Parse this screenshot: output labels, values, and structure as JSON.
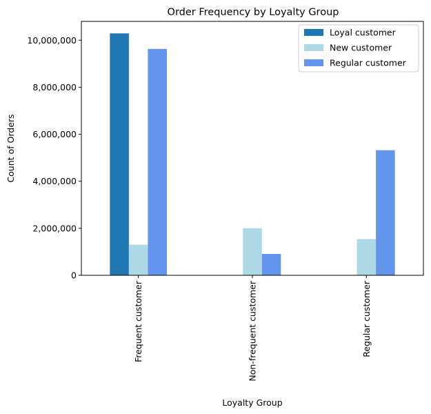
{
  "chart_data": {
    "type": "bar",
    "title": "Order Frequency by Loyalty Group",
    "xlabel": "Loyalty Group",
    "ylabel": "Count of Orders",
    "categories": [
      "Frequent customer",
      "Non-frequent customer",
      "Regular customer"
    ],
    "series": [
      {
        "name": "Loyal customer",
        "color": "#1f77b4",
        "values": [
          10290000,
          0,
          0
        ]
      },
      {
        "name": "New customer",
        "color": "#add8e6",
        "values": [
          1300000,
          2000000,
          1540000
        ]
      },
      {
        "name": "Regular customer",
        "color": "#6495ed",
        "values": [
          9630000,
          910000,
          5320000
        ]
      }
    ],
    "ylim": [
      0,
      10800000
    ],
    "yticks": [
      0,
      2000000,
      4000000,
      6000000,
      8000000,
      10000000
    ],
    "ytick_labels": [
      "0",
      "2,000,000",
      "4,000,000",
      "6,000,000",
      "8,000,000",
      "10,000,000"
    ],
    "grid": false,
    "legend_position": "top-right"
  }
}
